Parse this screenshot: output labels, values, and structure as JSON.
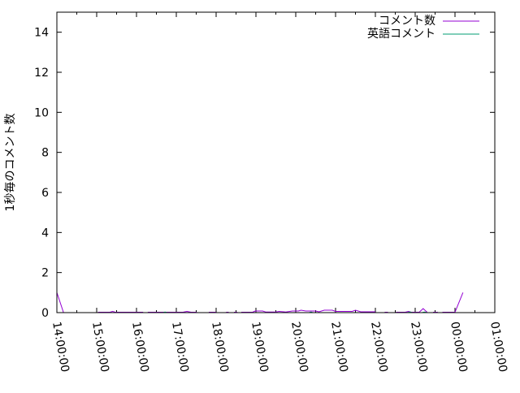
{
  "chart_data": {
    "type": "line",
    "title": "",
    "xlabel": "",
    "ylabel": "1秒毎のコメント数",
    "xlim": [
      "14:00:00",
      "01:00:00"
    ],
    "ylim": [
      0,
      15
    ],
    "x_ticks": [
      "14:00:00",
      "15:00:00",
      "16:00:00",
      "17:00:00",
      "18:00:00",
      "19:00:00",
      "20:00:00",
      "21:00:00",
      "22:00:00",
      "23:00:00",
      "00:00:00",
      "01:00:00"
    ],
    "y_ticks": [
      "0",
      "2",
      "4",
      "6",
      "8",
      "10",
      "12",
      "14"
    ],
    "grid": false,
    "legend_position": "top-right",
    "series": [
      {
        "name": "コメント数",
        "color": "#9400d3",
        "points": [
          [
            "14:00",
            1.0
          ],
          [
            "14:10",
            0
          ],
          [
            null,
            null
          ],
          [
            "15:02",
            0.02
          ],
          [
            "15:20",
            0.02
          ],
          [
            "15:24",
            0.06
          ],
          [
            "15:28",
            0.02
          ],
          [
            "16:10",
            0.02
          ],
          [
            null,
            null
          ],
          [
            "16:17",
            0.02
          ],
          [
            "17:10",
            0.02
          ],
          [
            "17:16",
            0.06
          ],
          [
            "17:22",
            0.02
          ],
          [
            "17:31",
            0.02
          ],
          [
            null,
            null
          ],
          [
            "17:49",
            0.02
          ],
          [
            "18:00",
            0.02
          ],
          [
            null,
            null
          ],
          [
            "18:15",
            0.02
          ],
          [
            "18:19",
            0.02
          ],
          [
            null,
            null
          ],
          [
            "18:27",
            0.02
          ],
          [
            "18:32",
            0.02
          ],
          [
            null,
            null
          ],
          [
            "18:38",
            0.02
          ],
          [
            "18:55",
            0.02
          ],
          [
            "18:59",
            0.08
          ],
          [
            "19:10",
            0.08
          ],
          [
            "19:15",
            0.03
          ],
          [
            "19:30",
            0.03
          ],
          [
            "19:35",
            0.06
          ],
          [
            "19:45",
            0.03
          ],
          [
            "19:55",
            0.08
          ],
          [
            "20:04",
            0.08
          ],
          [
            "20:08",
            0.12
          ],
          [
            "20:15",
            0.08
          ],
          [
            "20:30",
            0.08
          ],
          [
            "20:35",
            0.04
          ],
          [
            "20:43",
            0.12
          ],
          [
            "20:55",
            0.12
          ],
          [
            "21:00",
            0.06
          ],
          [
            "21:15",
            0.06
          ],
          [
            "21:25",
            0.06
          ],
          [
            "21:30",
            0.12
          ],
          [
            "21:38",
            0.04
          ],
          [
            "22:00",
            0.04
          ],
          [
            null,
            null
          ],
          [
            "22:14",
            0.02
          ],
          [
            "22:19",
            0.02
          ],
          [
            null,
            null
          ],
          [
            "22:31",
            0.02
          ],
          [
            "22:45",
            0.02
          ],
          [
            "22:50",
            0.06
          ],
          [
            "22:54",
            0.02
          ],
          [
            "23:06",
            0.02
          ],
          [
            "23:12",
            0.2
          ],
          [
            "23:18",
            0.02
          ],
          [
            null,
            null
          ],
          [
            "23:27",
            0.02
          ],
          [
            "23:34",
            0.02
          ],
          [
            null,
            null
          ],
          [
            "23:41",
            0.02
          ],
          [
            "00:00",
            0.02
          ],
          [
            "00:12",
            1.0
          ]
        ]
      },
      {
        "name": "英語コメント",
        "color": "#009e73",
        "points": [
          [
            "16:40",
            0
          ],
          [
            "16:43",
            0.03
          ],
          [
            "16:46",
            0
          ],
          [
            null,
            null
          ],
          [
            "20:20",
            0
          ],
          [
            "20:23",
            0.03
          ],
          [
            "20:26",
            0
          ],
          [
            null,
            null
          ],
          [
            "21:05",
            0
          ],
          [
            "21:12",
            0
          ],
          [
            null,
            null
          ],
          [
            "22:48",
            0
          ],
          [
            "22:52",
            0.03
          ],
          [
            "22:56",
            0
          ],
          [
            null,
            null
          ],
          [
            "23:10",
            0
          ],
          [
            "23:14",
            0.03
          ],
          [
            "23:18",
            0
          ]
        ]
      }
    ]
  }
}
